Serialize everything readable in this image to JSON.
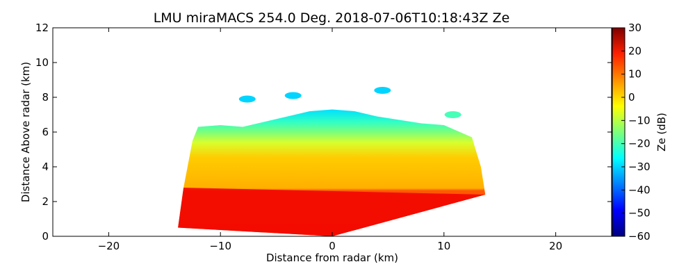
{
  "chart_data": {
    "type": "heatmap",
    "title": "LMU miraMACS 254.0 Deg. 2018-07-06T10:18:43Z  Ze",
    "xlabel": "Distance from radar (km)",
    "ylabel": "Distance Above radar  (km)",
    "xlim": [
      -25,
      25
    ],
    "ylim": [
      0,
      12
    ],
    "x_ticks": [
      -20,
      -10,
      0,
      10,
      20
    ],
    "x_tick_labels": [
      "−20",
      "−10",
      "0",
      "10",
      "20"
    ],
    "y_ticks": [
      0,
      2,
      4,
      6,
      8,
      10,
      12
    ],
    "y_tick_labels": [
      "0",
      "2",
      "4",
      "6",
      "8",
      "10",
      "12"
    ],
    "colorbar": {
      "label": "Ze (dB)",
      "range": [
        -60,
        30
      ],
      "ticks": [
        -60,
        -50,
        -40,
        -30,
        -20,
        -10,
        0,
        10,
        20,
        30
      ],
      "tick_labels": [
        "−60",
        "−50",
        "−40",
        "−30",
        "−20",
        "−10",
        "0",
        "10",
        "20",
        "30"
      ],
      "colormap": "jet"
    },
    "field": {
      "description_units": "km",
      "boundary": [
        [
          -13.8,
          0.5
        ],
        [
          -13.3,
          2.8
        ],
        [
          -12.5,
          5.5
        ],
        [
          -12.0,
          6.3
        ],
        [
          -10,
          6.4
        ],
        [
          -8,
          6.3
        ],
        [
          -6,
          6.6
        ],
        [
          -4,
          6.9
        ],
        [
          -2,
          7.2
        ],
        [
          0,
          7.3
        ],
        [
          2,
          7.2
        ],
        [
          4,
          6.9
        ],
        [
          6,
          6.7
        ],
        [
          8,
          6.5
        ],
        [
          10,
          6.4
        ],
        [
          12.5,
          5.7
        ],
        [
          13.3,
          4.0
        ],
        [
          13.7,
          2.4
        ],
        [
          0,
          0
        ],
        [
          -13.8,
          0.5
        ]
      ],
      "rain_top_km": 2.8,
      "approx_values": [
        {
          "layer": "rain 0-2.8 km",
          "ze_db": 20
        },
        {
          "layer": "mid cloud 3-5.5 km",
          "ze_db": 5
        },
        {
          "layer": "upper edge 6-7 km",
          "ze_db": -20
        },
        {
          "layer": "cloud top",
          "ze_db": -30
        }
      ],
      "isolated_echoes": [
        {
          "x": -7.6,
          "y": 7.9,
          "ze_db": -30
        },
        {
          "x": -3.5,
          "y": 8.1,
          "ze_db": -30
        },
        {
          "x": 4.5,
          "y": 8.4,
          "ze_db": -30
        },
        {
          "x": 10.8,
          "y": 7.0,
          "ze_db": -20
        }
      ]
    }
  }
}
